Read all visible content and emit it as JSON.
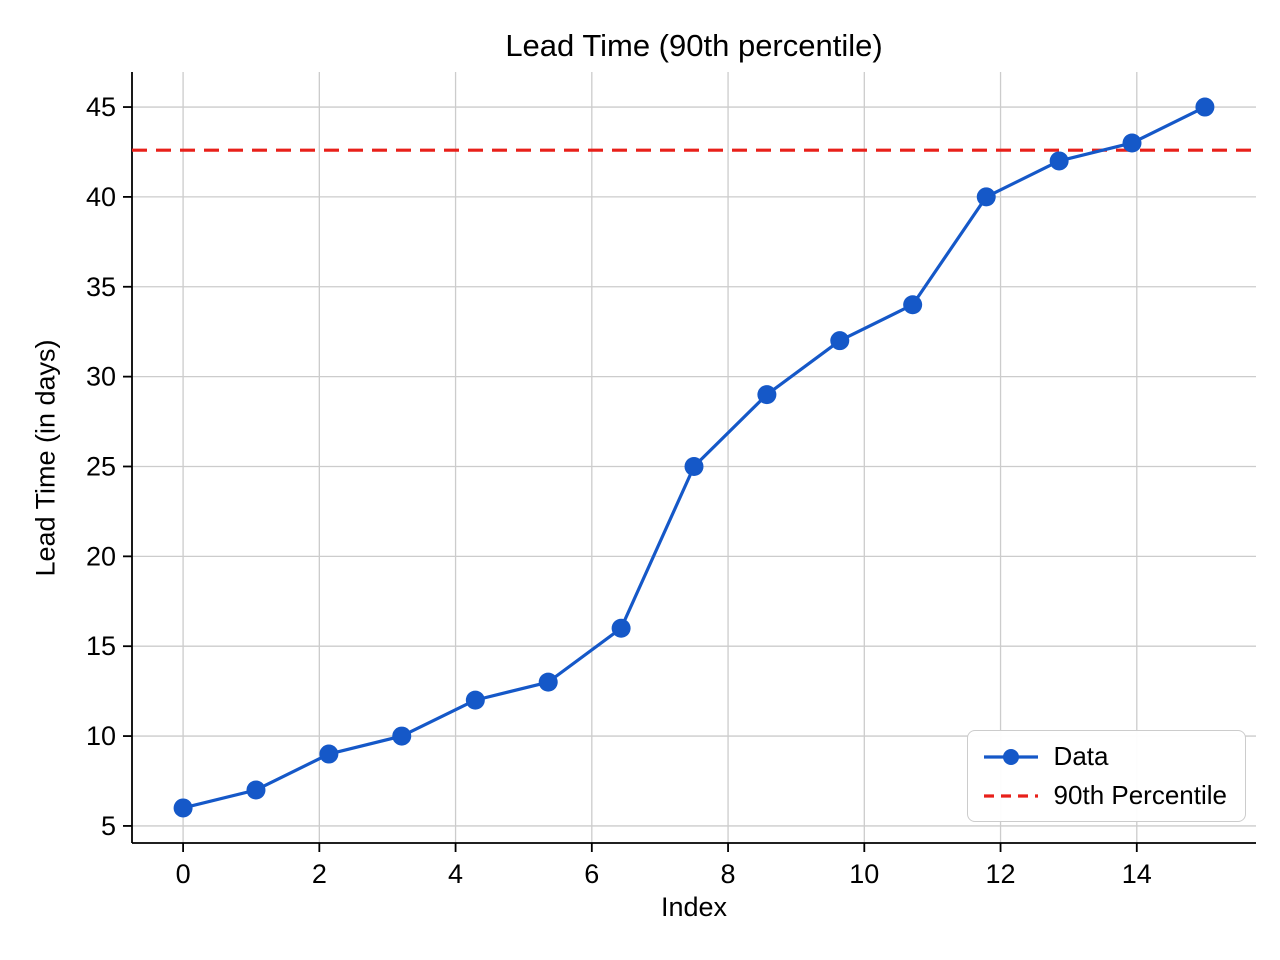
{
  "chart_data": {
    "type": "line",
    "title": "Lead Time (90th percentile)",
    "xlabel": "Index",
    "ylabel": "Lead Time (in days)",
    "xlim": [
      -0.75,
      15.75
    ],
    "ylim": [
      4.05,
      46.95
    ],
    "xticks": [
      0,
      2,
      4,
      6,
      8,
      10,
      12,
      14
    ],
    "yticks": [
      5,
      10,
      15,
      20,
      25,
      30,
      35,
      40,
      45
    ],
    "grid": true,
    "legend_position": "lower right",
    "series": [
      {
        "name": "Data",
        "color": "#1558c8",
        "marker": "circle",
        "x": [
          0,
          1.07,
          2.14,
          3.21,
          4.29,
          5.36,
          6.43,
          7.5,
          8.57,
          9.64,
          10.71,
          11.79,
          12.86,
          13.93,
          15
        ],
        "y": [
          6,
          7,
          9,
          10,
          12,
          13,
          16,
          25,
          29,
          32,
          34,
          40,
          42,
          43,
          45
        ]
      }
    ],
    "reference_lines": [
      {
        "name": "90th Percentile",
        "value": 42.6,
        "color": "#e8201a",
        "style": "dashed"
      }
    ],
    "legend": [
      {
        "label": "Data"
      },
      {
        "label": "90th Percentile"
      }
    ],
    "colors": {
      "grid": "#cccccc",
      "spine": "#000000",
      "text": "#000000",
      "legend_border": "#cccccc",
      "legend_bg": "#ffffff"
    }
  }
}
